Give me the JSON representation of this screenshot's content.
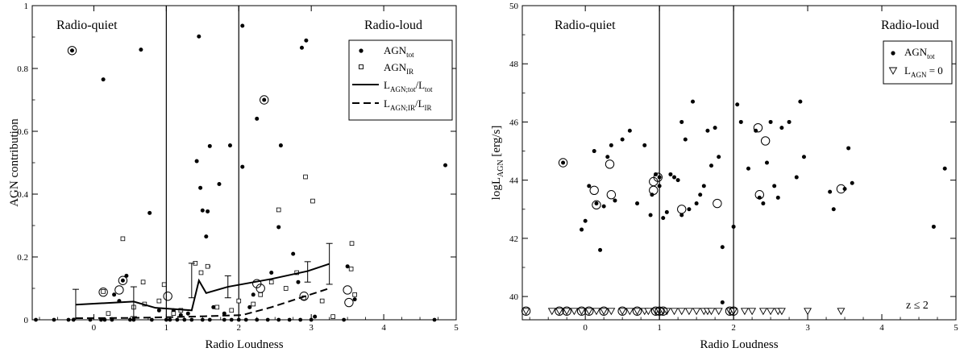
{
  "chart_data": [
    {
      "type": "scatter",
      "title": "",
      "xlabel": "Radio Loudness",
      "ylabel": "AGN contribution",
      "xlim": [
        -0.85,
        5.0
      ],
      "ylim": [
        0,
        1
      ],
      "xticks": [
        "0",
        "1",
        "2",
        "3",
        "4",
        "5"
      ],
      "yticks": [
        "0",
        "0.2",
        "0.4",
        "0.6",
        "0.8",
        "1"
      ],
      "vlines": [
        1,
        2
      ],
      "region_labels": {
        "left": "Radio-quiet",
        "right": "Radio-loud"
      },
      "legend": {
        "position": "top-right",
        "entries": [
          {
            "main": "AGN",
            "sub": "tot",
            "tail": "",
            "marker": "dot"
          },
          {
            "main": "AGN",
            "sub": "IR",
            "tail": "",
            "marker": "square"
          },
          {
            "main": "L",
            "sub": "AGN;tot",
            "tail": "/L",
            "sub2": "tot",
            "marker": "solid-line"
          },
          {
            "main": "L",
            "sub": "AGN;IR",
            "tail": "/L",
            "sub2": "IR",
            "marker": "dashed-line"
          }
        ]
      },
      "series": [
        {
          "name": "AGN_tot",
          "marker": "dot",
          "x": [
            -0.3,
            0.13,
            0.65,
            0.77,
            1.45,
            1.42,
            1.47,
            1.6,
            1.5,
            1.73,
            1.88,
            2.05,
            2.05,
            2.25,
            2.35,
            2.58,
            2.87,
            2.93,
            4.85,
            0.4,
            0.45,
            1.57,
            1.55,
            1.58,
            2.55,
            2.75,
            3.5,
            3.6,
            2.45,
            2.15,
            2.2,
            2.82,
            0.28,
            0.35,
            0.9,
            1.3,
            1.65,
            1.8,
            3.05,
            1.1,
            1.2
          ],
          "y": [
            0.857,
            0.765,
            0.86,
            0.34,
            0.902,
            0.505,
            0.42,
            0.553,
            0.348,
            0.432,
            0.555,
            0.936,
            0.487,
            0.64,
            0.7,
            0.555,
            0.866,
            0.889,
            0.492,
            0.125,
            0.14,
            0.345,
            0.265,
            0.17,
            0.295,
            0.21,
            0.17,
            0.065,
            0.15,
            0.04,
            0.08,
            0.12,
            0.08,
            0.06,
            0.03,
            0.02,
            0.04,
            0.02,
            0.01,
            0.03,
            0.015
          ]
        },
        {
          "name": "AGN_IR",
          "marker": "square",
          "x": [
            0.4,
            0.13,
            0.68,
            0.97,
            1.4,
            1.48,
            1.57,
            2.55,
            2.92,
            3.02,
            3.56,
            3.55,
            0.7,
            0.9,
            1.2,
            1.7,
            2.0,
            2.3,
            2.45,
            2.65,
            2.8,
            3.15,
            3.3,
            3.6,
            0.2,
            0.55,
            1.1,
            1.9,
            2.2,
            2.9
          ],
          "y": [
            0.258,
            0.09,
            0.12,
            0.112,
            0.18,
            0.15,
            0.17,
            0.35,
            0.455,
            0.378,
            0.243,
            0.162,
            0.05,
            0.06,
            0.03,
            0.04,
            0.06,
            0.08,
            0.12,
            0.1,
            0.15,
            0.06,
            0.01,
            0.08,
            0.02,
            0.04,
            0.02,
            0.03,
            0.05,
            0.07
          ]
        },
        {
          "name": "L_AGN;tot/L_tot",
          "marker": "solid-line",
          "x": [
            -0.25,
            0.55,
            0.85,
            1.35,
            1.45,
            1.55,
            1.85,
            2.45,
            2.95,
            3.25
          ],
          "y": [
            0.048,
            0.058,
            0.038,
            0.03,
            0.125,
            0.085,
            0.105,
            0.13,
            0.155,
            0.178
          ]
        },
        {
          "name": "L_AGN;IR/L_IR",
          "marker": "dashed-line",
          "x": [
            -0.25,
            0.55,
            1.35,
            2.05,
            2.45,
            3.25
          ],
          "y": [
            0.005,
            0.006,
            0.01,
            0.015,
            0.04,
            0.1
          ]
        }
      ],
      "error_bars": {
        "x": [
          -0.25,
          0.55,
          1.35,
          1.85,
          2.95,
          3.25
        ],
        "y": [
          0.048,
          0.058,
          0.125,
          0.105,
          0.155,
          0.178
        ],
        "upper": [
          0.097,
          0.105,
          0.18,
          0.14,
          0.185,
          0.243
        ],
        "lower": [
          0.005,
          0.01,
          0.07,
          0.07,
          0.12,
          0.113
        ]
      },
      "circled": {
        "x": [
          -0.3,
          2.35,
          0.13,
          0.35,
          0.4,
          1.02,
          2.25,
          2.3,
          2.9,
          3.5,
          3.52
        ],
        "y": [
          0.857,
          0.7,
          0.088,
          0.095,
          0.125,
          0.075,
          0.115,
          0.1,
          0.075,
          0.095,
          0.055
        ]
      },
      "baseline": {
        "x": [
          -0.8,
          -0.55,
          -0.35,
          -0.28,
          -0.05,
          0.1,
          0.15,
          0.25,
          0.5,
          0.55,
          0.8,
          1.0,
          1.05,
          1.15,
          1.25,
          1.35,
          1.5,
          1.6,
          1.8,
          1.9,
          2.0,
          2.1,
          2.25,
          2.4,
          2.55,
          2.7,
          2.85,
          3.0,
          3.45,
          4.7
        ],
        "y": [
          0,
          0,
          0,
          0,
          0,
          0,
          0,
          0,
          0,
          0,
          0,
          0,
          0,
          0,
          0,
          0,
          0,
          0,
          0,
          0,
          0,
          0,
          0,
          0,
          0,
          0,
          0,
          0,
          0,
          0
        ]
      }
    },
    {
      "type": "scatter",
      "title": "",
      "xlabel": "Radio Loudness",
      "ylabel_main": "logL",
      "ylabel_sub": "AGN",
      "ylabel_tail": " [erg/s]",
      "xlim": [
        -0.85,
        5.0
      ],
      "ylim": [
        39.2,
        50
      ],
      "xticks": [
        "0",
        "1",
        "2",
        "3",
        "4",
        "5"
      ],
      "yticks": [
        "40",
        "42",
        "44",
        "46",
        "48",
        "50"
      ],
      "vlines": [
        1,
        2
      ],
      "region_labels": {
        "left": "Radio-quiet",
        "right": "Radio-loud"
      },
      "annotation": "z ≤ 2",
      "legend": {
        "position": "top-right",
        "entries": [
          {
            "main": "AGN",
            "sub": "tot",
            "tail": "",
            "marker": "dot"
          },
          {
            "main": "L",
            "sub": "AGN",
            "tail": " = 0",
            "marker": "triangle"
          }
        ]
      },
      "series": [
        {
          "name": "AGN_tot",
          "marker": "dot",
          "x": [
            -0.3,
            -0.05,
            0.0,
            0.12,
            0.15,
            0.3,
            0.35,
            0.5,
            0.6,
            0.8,
            0.95,
            1.0,
            1.05,
            1.2,
            1.3,
            1.35,
            1.45,
            1.5,
            1.55,
            1.65,
            1.75,
            1.8,
            1.85,
            2.05,
            2.1,
            2.3,
            2.45,
            2.5,
            2.65,
            2.75,
            2.85,
            2.9,
            3.3,
            3.5,
            3.55,
            3.6,
            4.7,
            4.85,
            0.2,
            0.4,
            0.7,
            0.9,
            1.1,
            1.15,
            1.25,
            1.4,
            1.6,
            1.7,
            2.0,
            2.2,
            2.4,
            2.55,
            2.6,
            2.95,
            3.35,
            0.05,
            0.25,
            1.3,
            1.85,
            2.35,
            0.88,
            1.0
          ],
          "y": [
            44.6,
            42.3,
            42.6,
            45.0,
            43.2,
            44.8,
            45.2,
            45.4,
            45.7,
            45.2,
            44.2,
            43.8,
            42.7,
            44.1,
            46.0,
            45.4,
            46.7,
            43.2,
            43.5,
            45.7,
            45.8,
            44.8,
            41.7,
            46.6,
            46.0,
            45.7,
            44.6,
            46.0,
            45.8,
            46.0,
            44.1,
            46.7,
            43.6,
            43.7,
            45.1,
            43.9,
            42.4,
            44.4,
            41.6,
            43.3,
            43.2,
            43.5,
            42.9,
            44.2,
            44.0,
            43.0,
            43.8,
            44.5,
            42.4,
            44.4,
            43.2,
            43.8,
            43.4,
            44.8,
            43.0,
            43.8,
            43.1,
            42.8,
            39.8,
            43.4,
            42.8,
            44.1
          ]
        },
        {
          "name": "L_AGN=0",
          "marker": "triangle",
          "x": [
            -0.8,
            -0.45,
            -0.35,
            -0.25,
            -0.15,
            -0.05,
            0.05,
            0.15,
            0.25,
            0.35,
            0.5,
            0.6,
            0.7,
            0.8,
            0.85,
            0.95,
            1.0,
            1.05,
            1.1,
            1.2,
            1.3,
            1.4,
            1.5,
            1.6,
            1.65,
            1.7,
            1.8,
            1.95,
            2.0,
            2.15,
            2.25,
            2.4,
            2.5,
            2.6,
            2.65,
            3.0,
            3.45
          ],
          "y": [
            39.5,
            39.5,
            39.5,
            39.5,
            39.5,
            39.5,
            39.5,
            39.5,
            39.5,
            39.5,
            39.5,
            39.5,
            39.5,
            39.5,
            39.5,
            39.5,
            39.5,
            39.5,
            39.5,
            39.5,
            39.5,
            39.5,
            39.5,
            39.5,
            39.5,
            39.5,
            39.5,
            39.5,
            39.5,
            39.5,
            39.5,
            39.5,
            39.5,
            39.5,
            39.5,
            39.5,
            39.5
          ]
        }
      ],
      "circled": {
        "x": [
          -0.3,
          0.15,
          0.12,
          0.35,
          0.33,
          0.92,
          0.92,
          0.98,
          1.3,
          1.78,
          2.33,
          2.43,
          2.35,
          3.45,
          -0.8,
          -0.35,
          -0.25,
          -0.05,
          0.05,
          0.25,
          0.5,
          0.7,
          0.95,
          1.0,
          1.05,
          1.95,
          2.0
        ],
        "y": [
          44.6,
          43.15,
          43.65,
          43.5,
          44.55,
          43.95,
          43.65,
          44.1,
          43.0,
          43.2,
          45.8,
          45.35,
          43.5,
          43.7,
          39.5,
          39.5,
          39.5,
          39.5,
          39.5,
          39.5,
          39.5,
          39.5,
          39.5,
          39.5,
          39.5,
          39.5,
          39.5
        ]
      }
    }
  ]
}
